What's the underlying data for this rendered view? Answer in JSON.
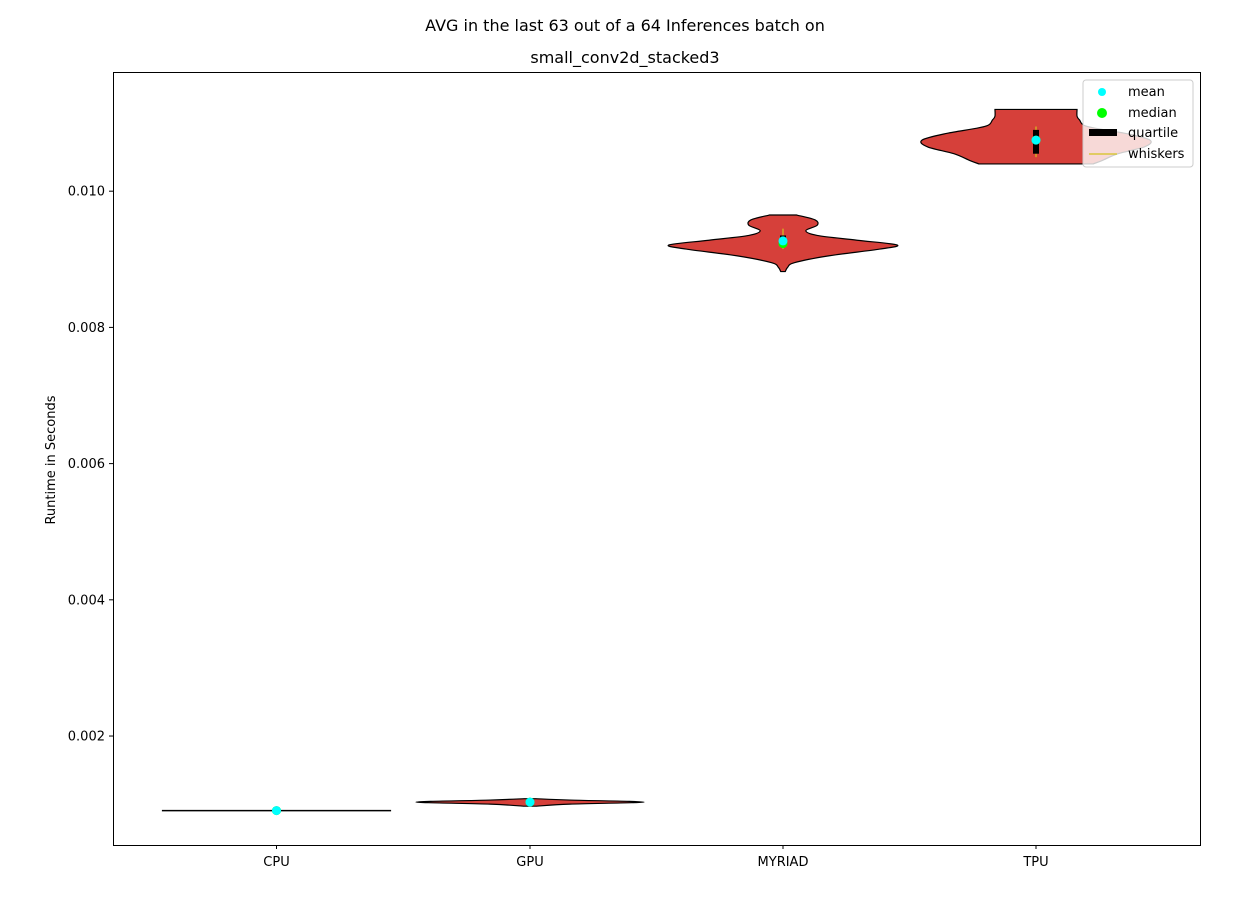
{
  "chart_data": {
    "type": "violin",
    "title_line1": "AVG in the last 63 out of a 64 Inferences batch on",
    "title_line2": "small_conv2d_stacked3",
    "ylabel": "Runtime in Seconds",
    "xlabel": "",
    "ylim": [
      0.0004,
      0.01175
    ],
    "yticks": [
      0.002,
      0.004,
      0.006,
      0.008,
      0.01
    ],
    "ytick_labels": [
      "0.002",
      "0.004",
      "0.006",
      "0.008",
      "0.010"
    ],
    "categories": [
      "CPU",
      "GPU",
      "MYRIAD",
      "TPU"
    ],
    "colors": {
      "violin_fill": "#d6403a",
      "violin_edge": "#000000",
      "mean": "#00ffff",
      "median": "#00ff00",
      "quartile": "#000000",
      "whiskers": "#d4c31e"
    },
    "legend": {
      "placement": "top-right",
      "entries": [
        {
          "key": "mean",
          "label": "mean"
        },
        {
          "key": "median",
          "label": "median"
        },
        {
          "key": "quartile",
          "label": "quartile"
        },
        {
          "key": "whiskers",
          "label": "whiskers"
        }
      ]
    },
    "violins": [
      {
        "category": "CPU",
        "mean": 0.000905,
        "median": 0.000905,
        "q1": 0.000902,
        "q3": 0.000908,
        "whisker_low": 0.0009,
        "whisker_high": 0.00091,
        "profile": [
          [
            0.000903,
            1.0
          ],
          [
            0.000907,
            1.0
          ]
        ]
      },
      {
        "category": "GPU",
        "mean": 0.00103,
        "median": 0.00103,
        "q1": 0.00102,
        "q3": 0.00104,
        "whisker_low": 0.00098,
        "whisker_high": 0.00107,
        "profile": [
          [
            0.00097,
            0.05
          ],
          [
            0.001,
            0.35
          ],
          [
            0.00103,
            1.0
          ],
          [
            0.00106,
            0.35
          ],
          [
            0.00108,
            0.05
          ]
        ]
      },
      {
        "category": "MYRIAD",
        "mean": 0.00927,
        "median": 0.00923,
        "q1": 0.0092,
        "q3": 0.00935,
        "whisker_low": 0.00915,
        "whisker_high": 0.00945,
        "profile": [
          [
            0.00882,
            0.02
          ],
          [
            0.00888,
            0.04
          ],
          [
            0.00895,
            0.1
          ],
          [
            0.00905,
            0.4
          ],
          [
            0.00915,
            0.85
          ],
          [
            0.00921,
            1.0
          ],
          [
            0.00928,
            0.65
          ],
          [
            0.00935,
            0.3
          ],
          [
            0.00942,
            0.2
          ],
          [
            0.0095,
            0.3
          ],
          [
            0.00958,
            0.28
          ],
          [
            0.00965,
            0.12
          ]
        ]
      },
      {
        "category": "TPU",
        "mean": 0.01075,
        "median": 0.01075,
        "q1": 0.01055,
        "q3": 0.0109,
        "whisker_low": 0.0105,
        "whisker_high": 0.01095,
        "profile": [
          [
            0.0104,
            0.5
          ],
          [
            0.01045,
            0.58
          ],
          [
            0.01055,
            0.72
          ],
          [
            0.01065,
            0.95
          ],
          [
            0.01075,
            1.0
          ],
          [
            0.01085,
            0.78
          ],
          [
            0.01095,
            0.45
          ],
          [
            0.01105,
            0.38
          ],
          [
            0.0111,
            0.36
          ],
          [
            0.0112,
            0.36
          ]
        ]
      }
    ]
  }
}
